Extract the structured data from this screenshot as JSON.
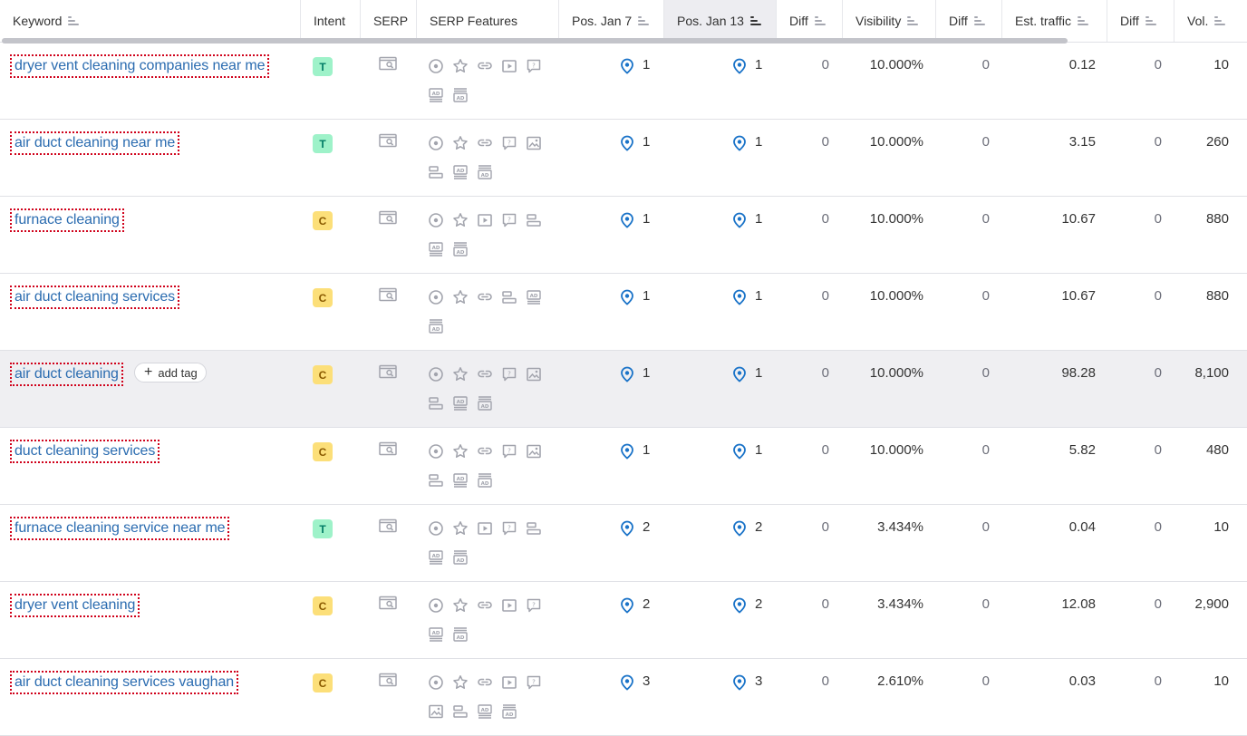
{
  "columns": {
    "keyword": "Keyword",
    "intent": "Intent",
    "serp": "SERP",
    "serp_features": "SERP Features",
    "pos_jan7": "Pos. Jan 7",
    "pos_jan13": "Pos. Jan 13",
    "diff1": "Diff",
    "visibility": "Visibility",
    "diff2": "Diff",
    "est_traffic": "Est. traffic",
    "diff3": "Diff",
    "vol": "Vol."
  },
  "add_tag_label": "add tag",
  "colors": {
    "link": "#2b6cb0",
    "pin": "#1a73c8",
    "intent_T": "#9ef2c9",
    "intent_C": "#fcdf79",
    "hover_row": "#efeff2"
  },
  "rows": [
    {
      "keyword": "dryer vent cleaning companies near me",
      "intent": "T",
      "features": [
        [
          "local-pack-icon",
          "reviews-icon",
          "sitelinks-icon",
          "video-icon",
          "faq-icon"
        ],
        [
          "ads-top-icon",
          "ads-bottom-icon"
        ]
      ],
      "pos_jan7": "1",
      "pos_jan13": "1",
      "diff1": "0",
      "visibility": "10.000%",
      "diff2": "0",
      "est_traffic": "0.12",
      "diff3": "0",
      "vol": "10"
    },
    {
      "keyword": "air duct cleaning near me",
      "intent": "T",
      "features": [
        [
          "local-pack-icon",
          "reviews-icon",
          "sitelinks-icon",
          "faq-icon",
          "image-pack-icon"
        ],
        [
          "related-searches-icon",
          "ads-top-icon",
          "ads-bottom-icon"
        ]
      ],
      "pos_jan7": "1",
      "pos_jan13": "1",
      "diff1": "0",
      "visibility": "10.000%",
      "diff2": "0",
      "est_traffic": "3.15",
      "diff3": "0",
      "vol": "260"
    },
    {
      "keyword": "furnace cleaning",
      "intent": "C",
      "features": [
        [
          "local-pack-icon",
          "reviews-icon",
          "video-icon",
          "faq-icon",
          "related-searches-icon"
        ],
        [
          "ads-top-icon",
          "ads-bottom-icon"
        ]
      ],
      "pos_jan7": "1",
      "pos_jan13": "1",
      "diff1": "0",
      "visibility": "10.000%",
      "diff2": "0",
      "est_traffic": "10.67",
      "diff3": "0",
      "vol": "880"
    },
    {
      "keyword": "air duct cleaning services",
      "intent": "C",
      "features": [
        [
          "local-pack-icon",
          "reviews-icon",
          "sitelinks-icon",
          "related-searches-icon",
          "ads-top-icon"
        ],
        [
          "ads-bottom-icon"
        ]
      ],
      "pos_jan7": "1",
      "pos_jan13": "1",
      "diff1": "0",
      "visibility": "10.000%",
      "diff2": "0",
      "est_traffic": "10.67",
      "diff3": "0",
      "vol": "880"
    },
    {
      "keyword": "air duct cleaning",
      "intent": "C",
      "hover": true,
      "features": [
        [
          "local-pack-icon",
          "reviews-icon",
          "sitelinks-icon",
          "faq-icon",
          "image-pack-icon"
        ],
        [
          "related-searches-icon",
          "ads-top-icon",
          "ads-bottom-icon"
        ]
      ],
      "pos_jan7": "1",
      "pos_jan13": "1",
      "diff1": "0",
      "visibility": "10.000%",
      "diff2": "0",
      "est_traffic": "98.28",
      "diff3": "0",
      "vol": "8,100"
    },
    {
      "keyword": "duct cleaning services",
      "intent": "C",
      "features": [
        [
          "local-pack-icon",
          "reviews-icon",
          "sitelinks-icon",
          "faq-icon",
          "image-pack-icon"
        ],
        [
          "related-searches-icon",
          "ads-top-icon",
          "ads-bottom-icon"
        ]
      ],
      "pos_jan7": "1",
      "pos_jan13": "1",
      "diff1": "0",
      "visibility": "10.000%",
      "diff2": "0",
      "est_traffic": "5.82",
      "diff3": "0",
      "vol": "480"
    },
    {
      "keyword": "furnace cleaning service near me",
      "intent": "T",
      "features": [
        [
          "local-pack-icon",
          "reviews-icon",
          "video-icon",
          "faq-icon",
          "related-searches-icon"
        ],
        [
          "ads-top-icon",
          "ads-bottom-icon"
        ]
      ],
      "pos_jan7": "2",
      "pos_jan13": "2",
      "diff1": "0",
      "visibility": "3.434%",
      "diff2": "0",
      "est_traffic": "0.04",
      "diff3": "0",
      "vol": "10"
    },
    {
      "keyword": "dryer vent cleaning",
      "intent": "C",
      "features": [
        [
          "local-pack-icon",
          "reviews-icon",
          "sitelinks-icon",
          "video-icon",
          "faq-icon"
        ],
        [
          "ads-top-icon",
          "ads-bottom-icon"
        ]
      ],
      "pos_jan7": "2",
      "pos_jan13": "2",
      "diff1": "0",
      "visibility": "3.434%",
      "diff2": "0",
      "est_traffic": "12.08",
      "diff3": "0",
      "vol": "2,900"
    },
    {
      "keyword": "air duct cleaning services vaughan",
      "intent": "C",
      "features": [
        [
          "local-pack-icon",
          "reviews-icon",
          "sitelinks-icon",
          "video-icon",
          "faq-icon"
        ],
        [
          "image-pack-icon",
          "related-searches-icon",
          "ads-top-icon",
          "ads-bottom-icon"
        ]
      ],
      "pos_jan7": "3",
      "pos_jan13": "3",
      "diff1": "0",
      "visibility": "2.610%",
      "diff2": "0",
      "est_traffic": "0.03",
      "diff3": "0",
      "vol": "10"
    }
  ]
}
